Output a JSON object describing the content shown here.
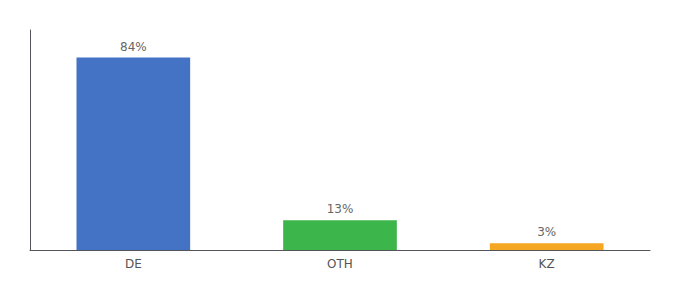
{
  "chart_data": {
    "type": "bar",
    "categories": [
      "DE",
      "OTH",
      "KZ"
    ],
    "values": [
      84,
      13,
      3
    ],
    "value_labels": [
      "84%",
      "13%",
      "3%"
    ],
    "colors": [
      "#4472c4",
      "#3cb54a",
      "#f5a623"
    ],
    "ylim": [
      0,
      96
    ],
    "yticks": [],
    "grid": false,
    "tick_labels": "x",
    "data_labels": true
  }
}
